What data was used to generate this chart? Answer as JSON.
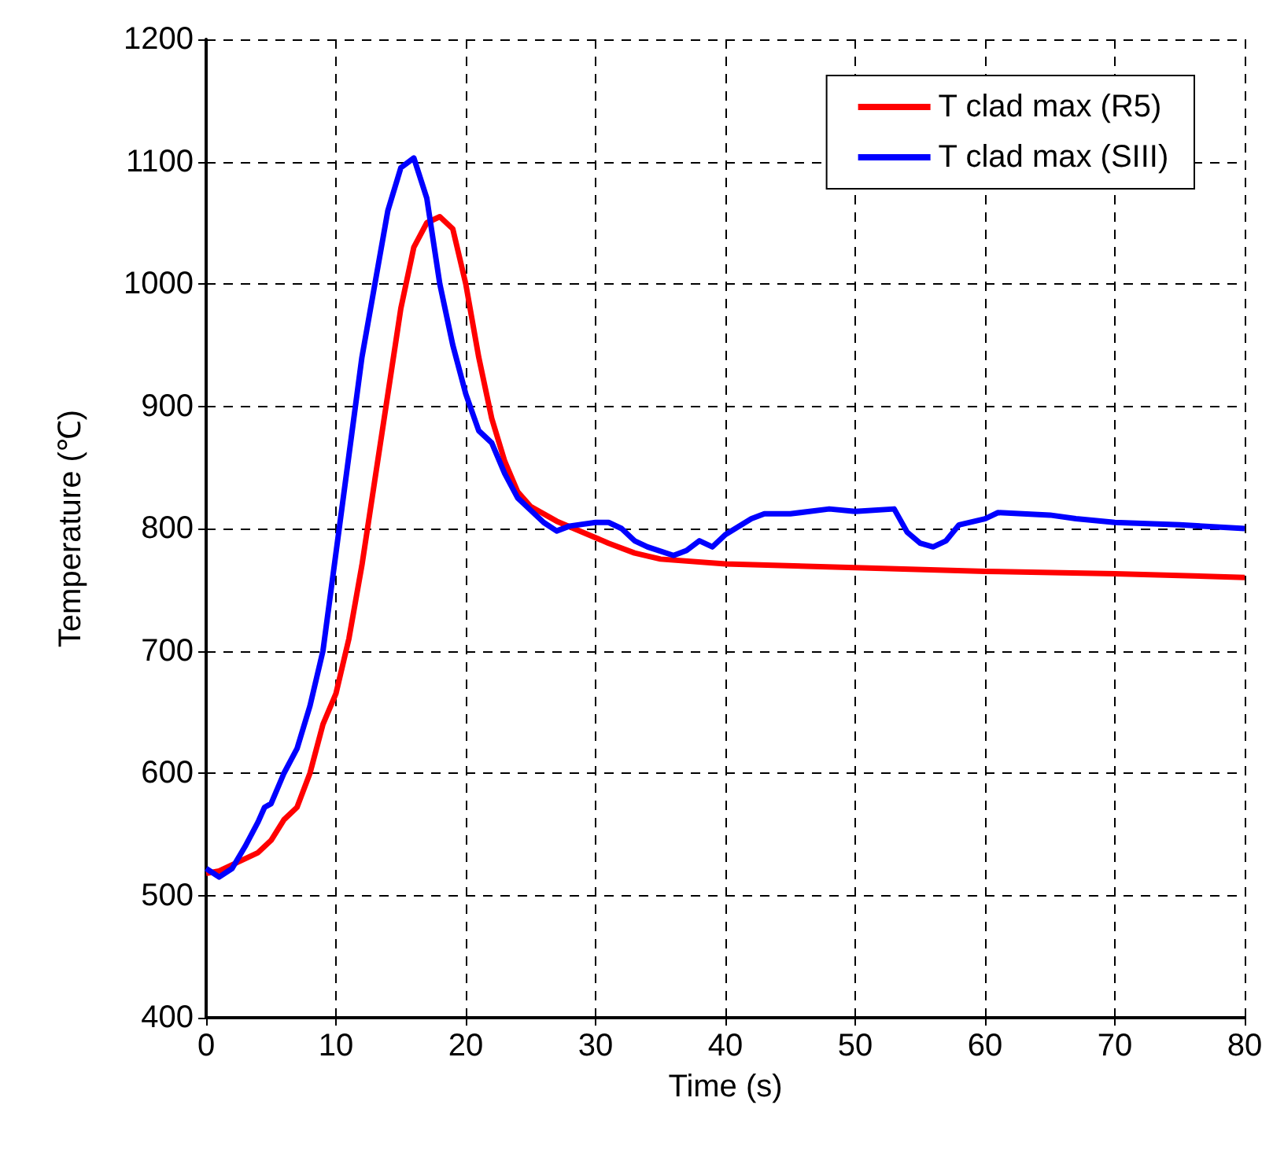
{
  "chart_data": {
    "type": "line",
    "xlabel": "Time (s)",
    "ylabel": "Temperature (℃)",
    "xlim": [
      0,
      80
    ],
    "xticks": [
      0,
      10,
      20,
      30,
      40,
      50,
      60,
      70,
      80
    ],
    "ylim": [
      400,
      1200
    ],
    "yticks": [
      400,
      500,
      600,
      700,
      800,
      900,
      1000,
      1100,
      1200
    ],
    "grid": true,
    "legend": "top right",
    "marker": "none",
    "line_style": "solid",
    "series": [
      {
        "name": "T clad max (R5)",
        "color": "#ff0000",
        "x": [
          0,
          1,
          2,
          3,
          4,
          5,
          6,
          7,
          8,
          9,
          10,
          11,
          12,
          13,
          14,
          15,
          16,
          17,
          18,
          19,
          20,
          21,
          22,
          23,
          24,
          25,
          27,
          29,
          31,
          33,
          35,
          40,
          50,
          60,
          70,
          80
        ],
        "values": [
          518,
          520,
          525,
          530,
          535,
          545,
          562,
          572,
          600,
          640,
          665,
          710,
          770,
          840,
          910,
          980,
          1030,
          1050,
          1055,
          1045,
          1000,
          940,
          890,
          855,
          830,
          818,
          806,
          797,
          788,
          780,
          775,
          771,
          768,
          765,
          763,
          760
        ]
      },
      {
        "name": "T clad max (SIII)",
        "color": "#0000ff",
        "x": [
          0,
          1,
          2,
          3,
          4,
          4.5,
          5,
          6,
          7,
          8,
          9,
          10,
          11,
          12,
          13,
          14,
          15,
          16,
          17,
          18,
          19,
          20,
          21,
          22,
          23,
          24,
          25,
          26,
          27,
          28,
          30,
          31,
          32,
          33,
          34,
          36,
          37,
          38,
          39,
          40,
          42,
          43,
          45,
          48,
          50,
          53,
          54,
          55,
          56,
          57,
          58,
          60,
          61,
          65,
          67,
          70,
          75,
          80
        ],
        "values": [
          522,
          515,
          522,
          540,
          560,
          572,
          575,
          600,
          620,
          655,
          700,
          780,
          860,
          940,
          1000,
          1060,
          1095,
          1103,
          1070,
          1000,
          950,
          910,
          880,
          870,
          845,
          825,
          815,
          805,
          798,
          802,
          805,
          805,
          800,
          790,
          785,
          778,
          782,
          790,
          785,
          795,
          808,
          812,
          812,
          816,
          814,
          816,
          797,
          788,
          785,
          790,
          803,
          808,
          813,
          811,
          808,
          805,
          803,
          800
        ]
      }
    ]
  }
}
